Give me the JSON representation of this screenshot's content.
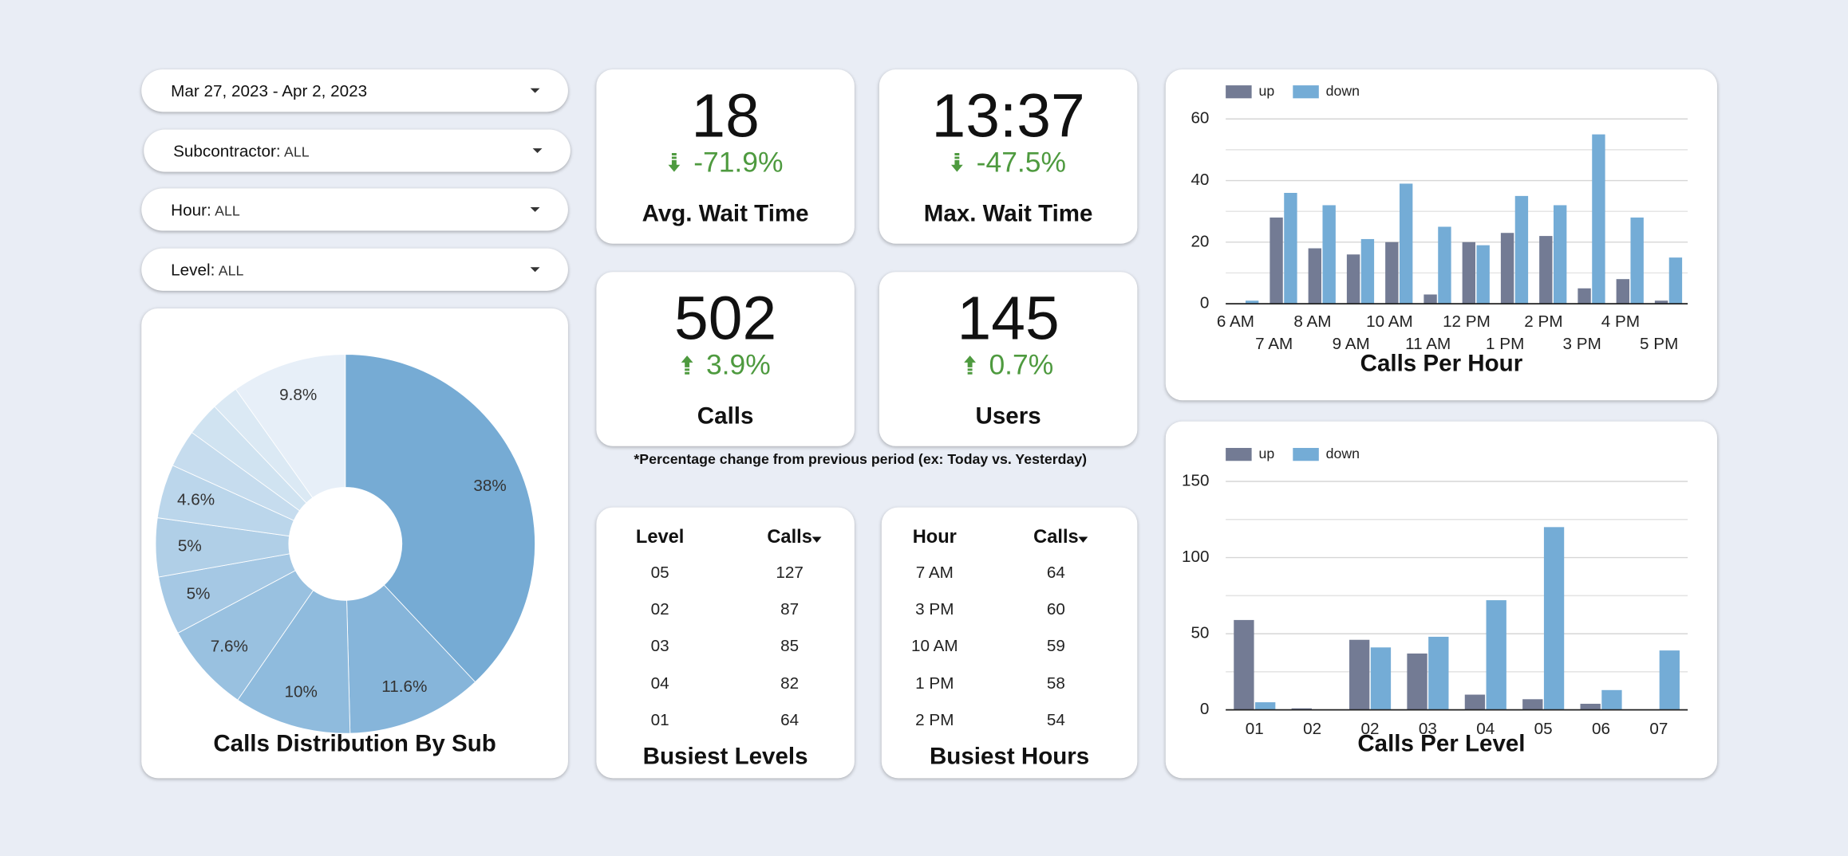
{
  "filters": [
    {
      "label": "Mar 27, 2023 - Apr 2, 2023"
    },
    {
      "label": "Subcontractor:",
      "value": "ALL"
    },
    {
      "label": "Hour:",
      "value": "ALL"
    },
    {
      "label": "Level:",
      "value": "ALL"
    }
  ],
  "scorecards": [
    {
      "value": "18",
      "change": "-71.9%",
      "direction": "down",
      "label": "Avg. Wait Time"
    },
    {
      "value": "13:37",
      "change": "-47.5%",
      "direction": "down",
      "label": "Max. Wait Time"
    },
    {
      "value": "502",
      "change": "3.9%",
      "direction": "up",
      "label": "Calls"
    },
    {
      "value": "145",
      "change": "0.7%",
      "direction": "up",
      "label": "Users"
    }
  ],
  "note": "*Percentage change from previous period (ex: Today vs. Yesterday)",
  "tables": [
    {
      "title": "Busiest Levels",
      "columns": [
        "Level",
        "Calls"
      ],
      "rows": [
        [
          "05",
          127
        ],
        [
          "02",
          87
        ],
        [
          "03",
          85
        ],
        [
          "04",
          82
        ],
        [
          "01",
          64
        ]
      ]
    },
    {
      "title": "Busiest Hours",
      "columns": [
        "Hour",
        "Calls"
      ],
      "rows": [
        [
          "7 AM",
          64
        ],
        [
          "3 PM",
          60
        ],
        [
          "10 AM",
          59
        ],
        [
          "1 PM",
          58
        ],
        [
          "2 PM",
          54
        ]
      ]
    }
  ],
  "chart_data": [
    {
      "type": "pie",
      "title": "Calls Distribution By Sub",
      "donut": true,
      "values": [
        38,
        11.6,
        10,
        7.6,
        5,
        5,
        4.6,
        3.2,
        2.9,
        2.3,
        9.8
      ],
      "value_labels": [
        "38%",
        "11.6%",
        "10%",
        "7.6%",
        "5%",
        "5%",
        "4.6%",
        null,
        null,
        null,
        "9.8%"
      ],
      "colors": [
        "#76abd4",
        "#86b5da",
        "#8fbbdd",
        "#99c1e0",
        "#a5c8e4",
        "#b0cfe7",
        "#bbd6eb",
        "#c6dcee",
        "#d0e3f1",
        "#dbe9f4",
        "#e7eff8"
      ]
    },
    {
      "type": "bar",
      "title": "Calls Per Hour",
      "categories": [
        "6 AM",
        "7 AM",
        "8 AM",
        "9 AM",
        "10 AM",
        "11 AM",
        "12 PM",
        "1 PM",
        "2 PM",
        "3 PM",
        "4 PM",
        "5 PM"
      ],
      "series": [
        {
          "name": "up",
          "color": "#737b94",
          "values": [
            0,
            28,
            18,
            16,
            20,
            3,
            20,
            23,
            22,
            5,
            8,
            1
          ]
        },
        {
          "name": "down",
          "color": "#74acd6",
          "values": [
            1,
            36,
            32,
            21,
            39,
            25,
            19,
            35,
            32,
            55,
            28,
            15
          ]
        }
      ],
      "ylim": [
        0,
        65
      ],
      "yticks": [
        0,
        20,
        40,
        60
      ],
      "minor_yticks": [
        10,
        30,
        50
      ],
      "grid": true,
      "legend": "top-left"
    },
    {
      "type": "bar",
      "title": "Calls Per Level",
      "categories": [
        "01",
        "02",
        "02",
        "03",
        "04",
        "05",
        "06",
        "07"
      ],
      "series": [
        {
          "name": "up",
          "color": "#737b94",
          "values": [
            59,
            1,
            46,
            37,
            10,
            7,
            4,
            0
          ]
        },
        {
          "name": "down",
          "color": "#74acd6",
          "values": [
            5,
            0,
            41,
            48,
            72,
            120,
            13,
            39
          ]
        }
      ],
      "ylim": [
        0,
        160
      ],
      "yticks": [
        0,
        50,
        100,
        150
      ],
      "minor_yticks": [
        25,
        75,
        125
      ],
      "grid": true,
      "legend": "top-left"
    }
  ]
}
